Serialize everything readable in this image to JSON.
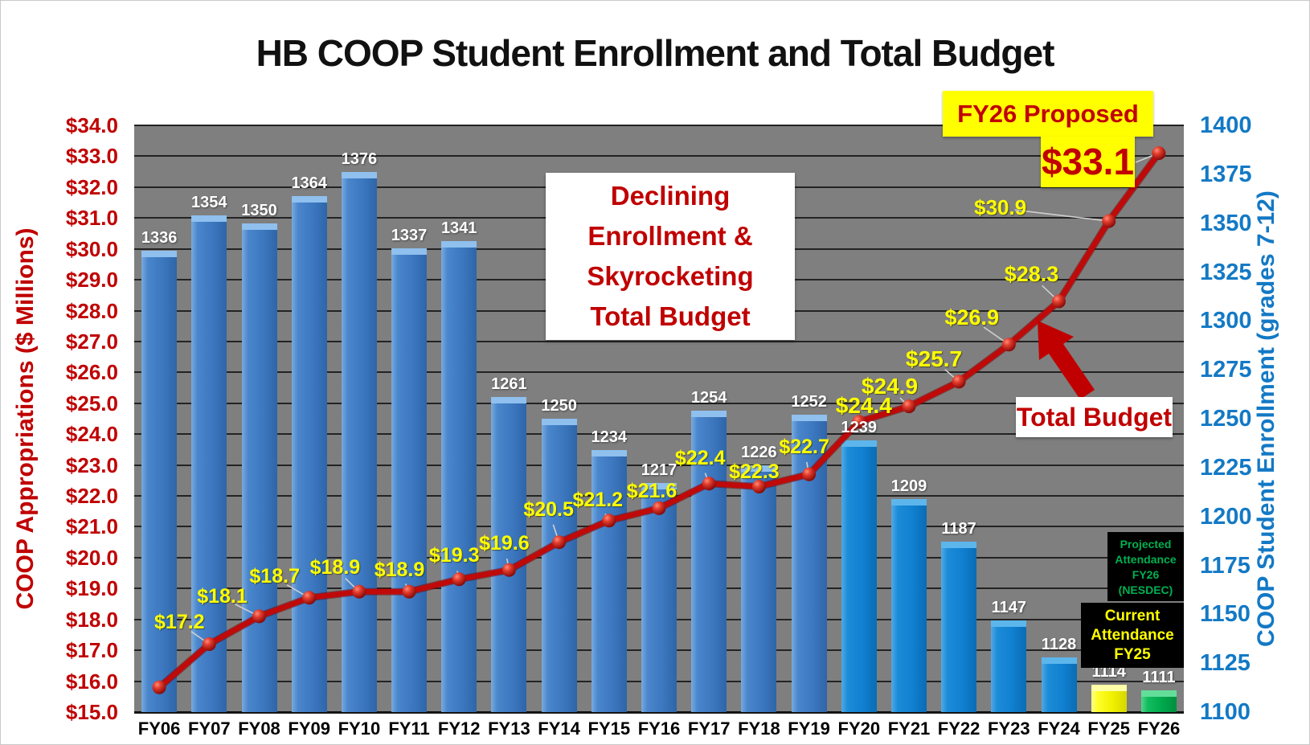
{
  "title": "HB COOP Student Enrollment and Total Budget",
  "axes": {
    "left": {
      "title": "COOP Appropriations ($ Millions)",
      "color": "#C00000",
      "ticks": [
        "$34.0",
        "$33.0",
        "$32.0",
        "$31.0",
        "$30.0",
        "$29.0",
        "$28.0",
        "$27.0",
        "$26.0",
        "$25.0",
        "$24.0",
        "$23.0",
        "$22.0",
        "$21.0",
        "$20.0",
        "$19.0",
        "$18.0",
        "$17.0",
        "$16.0",
        "$15.0"
      ]
    },
    "right": {
      "title": "COOP Student Enrollment (grades 7-12)",
      "color": "#0070C0",
      "ticks": [
        "1400",
        "1375",
        "1350",
        "1325",
        "1300",
        "1275",
        "1250",
        "1225",
        "1200",
        "1175",
        "1150",
        "1125",
        "1100"
      ]
    }
  },
  "chart_data": {
    "type": "combo bar+line",
    "categories": [
      "FY06",
      "FY07",
      "FY08",
      "FY09",
      "FY10",
      "FY11",
      "FY12",
      "FY13",
      "FY14",
      "FY15",
      "FY16",
      "FY17",
      "FY18",
      "FY19",
      "FY20",
      "FY21",
      "FY22",
      "FY23",
      "FY24",
      "FY25",
      "FY26"
    ],
    "series": [
      {
        "name": "COOP Student Enrollment (grades 7-12)",
        "type": "bar",
        "axis": "right",
        "values": [
          1336,
          1354,
          1350,
          1364,
          1376,
          1337,
          1341,
          1261,
          1250,
          1234,
          1217,
          1254,
          1226,
          1252,
          1239,
          1209,
          1187,
          1147,
          1128,
          1114,
          1111
        ],
        "bar_colors": [
          "#3F7CC4",
          "#3F7CC4",
          "#3F7CC4",
          "#3F7CC4",
          "#3F7CC4",
          "#3F7CC4",
          "#3F7CC4",
          "#3F7CC4",
          "#3F7CC4",
          "#3F7CC4",
          "#3F7CC4",
          "#3F7CC4",
          "#3F7CC4",
          "#3F7CC4",
          "#1287D6",
          "#1287D6",
          "#1287D6",
          "#1287D6",
          "#1287D6",
          "#FFFF00",
          "#00B050"
        ]
      },
      {
        "name": "Total Budget ($ Millions)",
        "type": "line",
        "axis": "left",
        "color": "#C00000",
        "values": [
          15.8,
          17.2,
          18.1,
          18.7,
          18.9,
          18.9,
          19.3,
          19.6,
          20.5,
          21.2,
          21.6,
          22.4,
          22.3,
          22.7,
          24.4,
          24.9,
          25.7,
          26.9,
          28.3,
          30.9,
          33.1
        ],
        "point_labels": [
          "",
          "$17.2",
          "$18.1",
          "$18.7",
          "$18.9",
          "$18.9",
          "$19.3",
          "$19.6",
          "$20.5",
          "$21.2",
          "$21.6",
          "$22.4",
          "$22.3",
          "$22.7",
          "$24.4",
          "$24.9",
          "$25.7",
          "$26.9",
          "$28.3",
          "$30.9",
          ""
        ]
      }
    ],
    "left_ylim": [
      15.0,
      34.0
    ],
    "right_ylim": [
      1100,
      1400
    ],
    "grid": "horizontal, $1.0 / 12.5 students interval",
    "plot_background": "#7F7F7F",
    "legend_position": "none"
  },
  "annotations": {
    "fy26_proposed": {
      "text": "FY26 Proposed",
      "bg": "#FFFF00",
      "color": "#C00000"
    },
    "fy26_value": {
      "text": "$33.1",
      "bg": "#FFFF00",
      "color": "#C00000"
    },
    "callout": {
      "lines": [
        "Declining",
        "Enrollment &",
        "Skyrocketing",
        "Total Budget"
      ],
      "color": "#C00000",
      "bg": "#FFFFFF"
    },
    "total_budget_label": {
      "text": "Total Budget",
      "color": "#C00000",
      "bg": "#FFFFFF"
    },
    "projected_attendance": {
      "lines": [
        "Projected",
        "Attendance",
        "FY26",
        "(NESDEC)"
      ],
      "color": "#00B050",
      "bg": "#000000"
    },
    "current_attendance": {
      "lines": [
        "Current",
        "Attendance",
        "FY25"
      ],
      "color": "#FFFF00",
      "bg": "#000000"
    }
  },
  "colors": {
    "bar_steel_blue": "#3F7CC4",
    "bar_bright_blue": "#1287D6",
    "bar_current_fy25": "#FFFF00",
    "bar_projected_fy26": "#00B050",
    "budget_line": "#C00000",
    "point_label_yellow": "#FFFF00",
    "plot_background": "#7F7F7F",
    "left_axis_red": "#C00000",
    "right_axis_blue": "#0070C0"
  }
}
